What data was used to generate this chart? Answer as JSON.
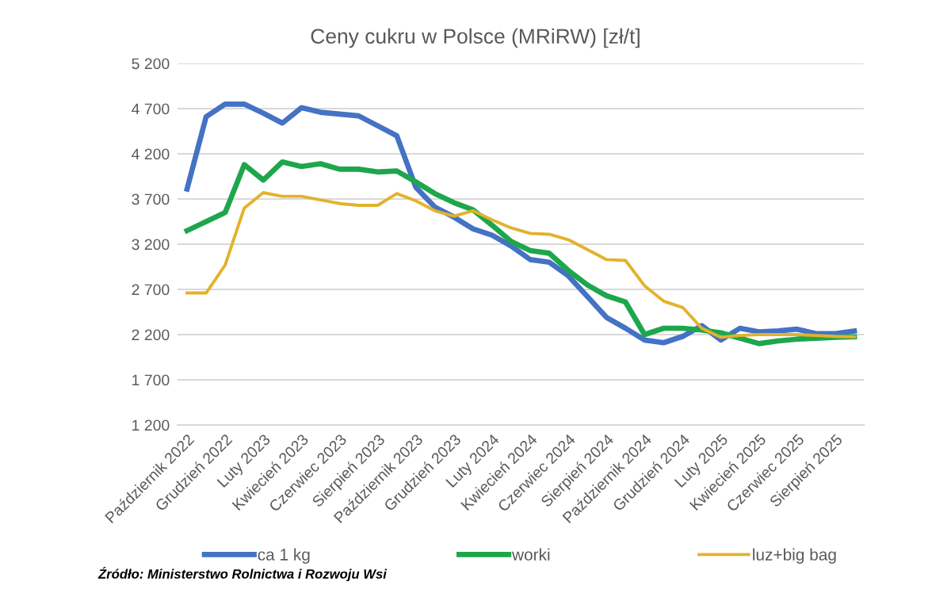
{
  "chart_data": {
    "type": "line",
    "title": "Ceny cukru w Polsce (MRiRW) [zł/t]",
    "categories": [
      "Październik 2022",
      null,
      "Grudzień 2022",
      null,
      "Luty 2023",
      null,
      "Kwiecień 2023",
      null,
      "Czerwiec 2023",
      null,
      "Sierpień 2023",
      null,
      "Październik 2023",
      null,
      "Grudzień 2023",
      null,
      "Luty 2024",
      null,
      "Kwiecień 2024",
      null,
      "Czerwiec 2024",
      null,
      "Sierpień 2024",
      null,
      "Październik 2024",
      null,
      "Grudzień 2024",
      null,
      "Luty 2025",
      null,
      "Kwiecień 2025",
      null,
      "Czerwiec 2025",
      null,
      "Sierpień 2025",
      null
    ],
    "series": [
      {
        "name": "ca 1 kg",
        "color": "#4472c4",
        "values": [
          3810,
          4610,
          4750,
          4750,
          4650,
          4540,
          4710,
          4660,
          4640,
          4620,
          4510,
          4400,
          3830,
          3610,
          3500,
          3370,
          3300,
          3180,
          3030,
          3000,
          2850,
          2620,
          2390,
          2270,
          2140,
          2110,
          2180,
          2300,
          2140,
          2270,
          2230,
          2240,
          2260,
          2210,
          2210,
          2240
        ]
      },
      {
        "name": "worki",
        "color": "#1ea64c",
        "values": [
          3350,
          3450,
          3550,
          4080,
          3910,
          4110,
          4060,
          4090,
          4030,
          4030,
          4000,
          4010,
          3890,
          3760,
          3660,
          3580,
          3410,
          3230,
          3130,
          3100,
          2910,
          2750,
          2630,
          2560,
          2200,
          2270,
          2270,
          2250,
          2220,
          2160,
          2100,
          2130,
          2150,
          2160,
          2170,
          2175
        ]
      },
      {
        "name": "luz+big bag",
        "color": "#e3b22c",
        "values": [
          2660,
          2660,
          2970,
          3600,
          3770,
          3730,
          3730,
          3690,
          3650,
          3630,
          3630,
          3760,
          3680,
          3570,
          3510,
          3570,
          3470,
          3380,
          3320,
          3310,
          3250,
          3140,
          3030,
          3020,
          2740,
          2570,
          2500,
          2270,
          2170,
          2190,
          2200,
          2200,
          2200,
          2190,
          2180,
          2175
        ]
      }
    ],
    "ylim": [
      1200,
      5200
    ],
    "yticks": [
      {
        "value": 1200,
        "label": "1 200"
      },
      {
        "value": 1700,
        "label": "1 700"
      },
      {
        "value": 2200,
        "label": "2 200"
      },
      {
        "value": 2700,
        "label": "2 700"
      },
      {
        "value": 3200,
        "label": "3 200"
      },
      {
        "value": 3700,
        "label": "3 700"
      },
      {
        "value": 4200,
        "label": "4 200"
      },
      {
        "value": 4700,
        "label": "4 700"
      },
      {
        "value": 5200,
        "label": "5 200"
      }
    ],
    "grid": "y",
    "legend": "bottom",
    "marker": "none",
    "line_style": "solid",
    "annotations": [
      "Źródło: Ministerstwo Rolnictwa i Rozwoju Wsi"
    ]
  }
}
